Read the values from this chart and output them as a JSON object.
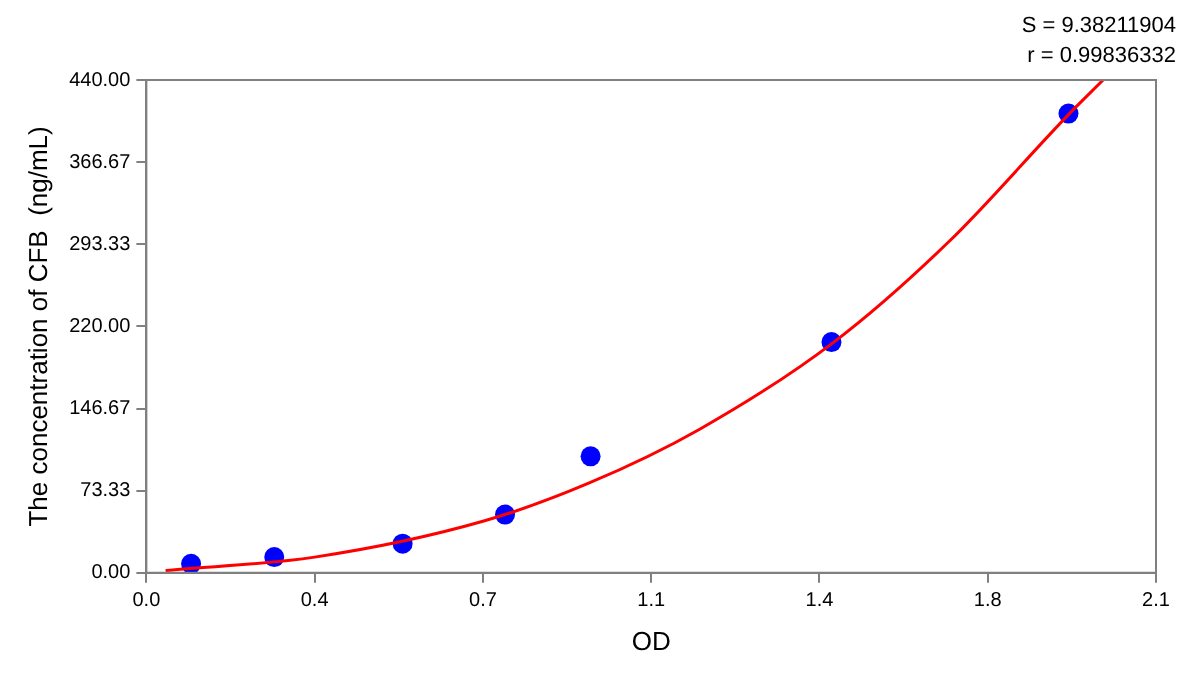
{
  "chart_data": {
    "type": "scatter",
    "xlabel": "OD",
    "ylabel": "The concentration of CFB  (ng/mL)",
    "annotations": [
      "S = 9.38211904",
      "r = 0.99836332"
    ],
    "xlim": [
      0,
      2.1
    ],
    "xticks": [
      {
        "value": 0,
        "label": "0.0"
      },
      {
        "value": 0.35,
        "label": "0.4"
      },
      {
        "value": 0.7,
        "label": "0.7"
      },
      {
        "value": 1.05,
        "label": "1.1"
      },
      {
        "value": 1.4,
        "label": "1.4"
      },
      {
        "value": 1.75,
        "label": "1.8"
      },
      {
        "value": 2.1,
        "label": "2.1"
      }
    ],
    "ylim": [
      0,
      440
    ],
    "yticks": [
      {
        "value": 0,
        "label": "0.00"
      },
      73.33,
      146.67,
      {
        "value": 220,
        "label": "220.00"
      },
      293.33,
      366.67,
      {
        "value": 440,
        "label": "440.00"
      }
    ],
    "grid": false,
    "legend": false,
    "series": [
      {
        "type": "line",
        "color": "#ff0000",
        "marker": "none",
        "x": [
          0.04,
          0.35,
          0.7,
          0.92,
          1.15,
          1.43,
          1.67,
          1.92,
          1.99
        ],
        "values": [
          2,
          14,
          46,
          80,
          128,
          206,
          296,
          410,
          440
        ]
      },
      {
        "color": "#0000ff",
        "marker": "circle",
        "x": [
          0.093,
          0.266,
          0.533,
          0.746,
          0.924,
          1.425,
          1.918
        ],
        "values": [
          8,
          14,
          26,
          52,
          104,
          206,
          410
        ]
      }
    ]
  }
}
